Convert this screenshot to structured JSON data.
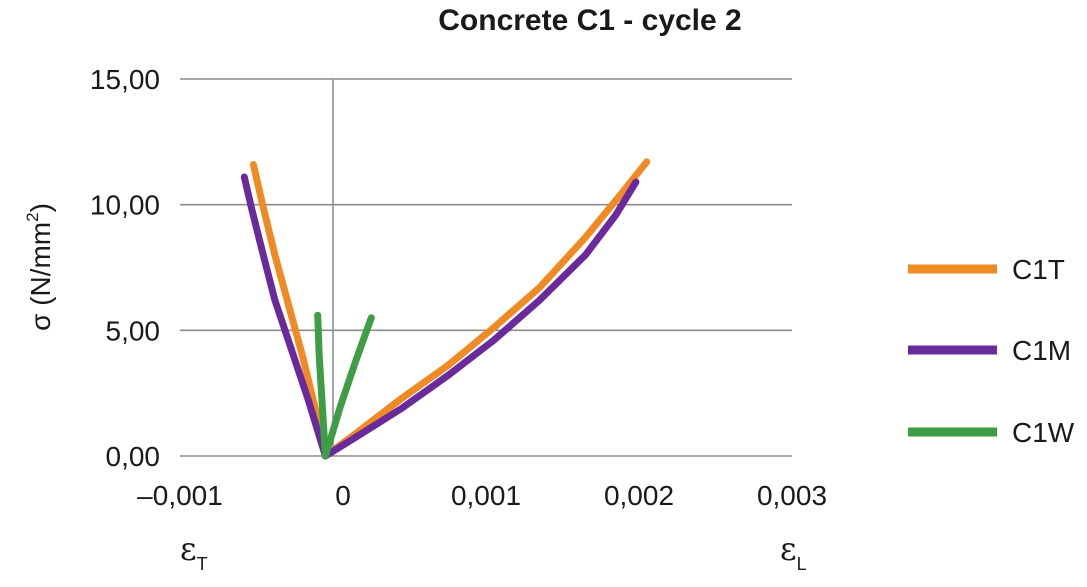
{
  "chart_data": {
    "type": "line",
    "title": "Concrete C1 - cycle 2",
    "ylabel": "σ (N/mm",
    "ylabel_sup": "2",
    "ylabel_close": ")",
    "xlabel_left": "ε",
    "xlabel_left_sub": "T",
    "xlabel_right": "ε",
    "xlabel_right_sub": "L",
    "xlim": [
      -0.001,
      0.003
    ],
    "ylim": [
      0,
      15
    ],
    "x_ticks": [
      -0.001,
      0,
      0.001,
      0.002,
      0.003
    ],
    "x_tick_labels": [
      "–0,001",
      "0",
      "0,001",
      "0,002",
      "0,003"
    ],
    "y_ticks": [
      0,
      5,
      10,
      15
    ],
    "y_tick_labels": [
      "0,00",
      "5,00",
      "10,00",
      "15,00"
    ],
    "grid": "horizontal",
    "legend_position": "right",
    "series": [
      {
        "name": "C1T",
        "color": "#f08a24",
        "branches": [
          {
            "x": [
              -5e-05,
              -0.00012,
              -0.0002,
              -0.00029,
              -0.00038,
              -0.00046,
              -0.00052
            ],
            "y": [
              0,
              2,
              4,
              6,
              8,
              10,
              11.6
            ]
          },
          {
            "x": [
              -5e-05,
              0.00015,
              0.00045,
              0.00075,
              0.00105,
              0.00135,
              0.00165,
              0.00188,
              0.00205
            ],
            "y": [
              0,
              0.9,
              2.3,
              3.6,
              5.1,
              6.7,
              8.7,
              10.4,
              11.7
            ]
          }
        ]
      },
      {
        "name": "C1M",
        "color": "#6a2a9c",
        "branches": [
          {
            "x": [
              -5e-05,
              -0.00016,
              -0.00027,
              -0.00038,
              -0.00046,
              -0.00053,
              -0.00058
            ],
            "y": [
              0,
              2.2,
              4.2,
              6.2,
              8.1,
              9.8,
              11.1
            ]
          },
          {
            "x": [
              -5e-05,
              0.00015,
              0.00045,
              0.00075,
              0.00105,
              0.00135,
              0.00165,
              0.00185,
              0.00198
            ],
            "y": [
              0,
              0.75,
              1.9,
              3.2,
              4.6,
              6.2,
              8.0,
              9.6,
              10.9
            ]
          }
        ]
      },
      {
        "name": "C1W",
        "color": "#3e9e45",
        "branches": [
          {
            "x": [
              -5e-05,
              -7e-05,
              -9e-05,
              -0.0001
            ],
            "y": [
              0,
              2,
              4,
              5.6
            ]
          },
          {
            "x": [
              -5e-05,
              5e-05,
              0.00015,
              0.00025
            ],
            "y": [
              0,
              2.0,
              3.8,
              5.5
            ]
          }
        ]
      }
    ]
  }
}
